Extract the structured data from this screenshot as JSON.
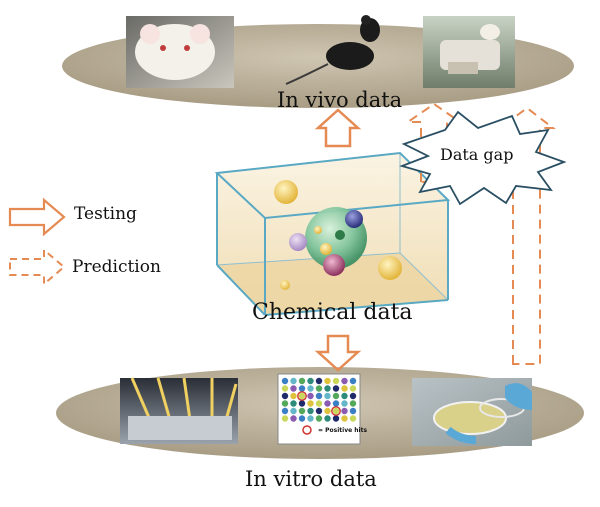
{
  "labels": {
    "in_vivo": "In vivo data",
    "chemical": "Chemical data",
    "in_vitro": "In vitro data",
    "data_gap": "Data gap",
    "positive_hits": "= Positive hits"
  },
  "legend": {
    "testing": "Testing",
    "prediction": "Prediction"
  },
  "colors": {
    "arrow": "#e58a52",
    "platform": "#b8ad98",
    "cube": "#f3e6c8"
  },
  "photos": {
    "top": [
      "white-rat-photo",
      "black-mouse-photo",
      "lab-mouse-handling-photo"
    ],
    "bottom": [
      "robotic-dispenser-photo",
      "well-plate-grid",
      "petri-dish-photo"
    ]
  }
}
